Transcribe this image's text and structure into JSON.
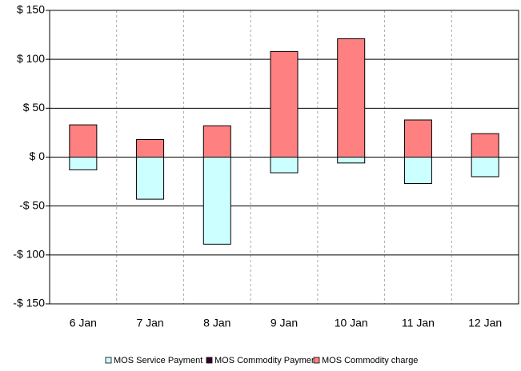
{
  "chart_data": {
    "type": "bar",
    "stacked": true,
    "categories": [
      "6 Jan",
      "7 Jan",
      "8 Jan",
      "9 Jan",
      "10 Jan",
      "11 Jan",
      "12 Jan"
    ],
    "series": [
      {
        "name": "MOS Service Payment",
        "color": "#ccffff",
        "values": [
          -13,
          -43,
          -89,
          -16,
          -6,
          -27,
          -20
        ]
      },
      {
        "name": "MOS Commodity Payment",
        "color": "#330033",
        "values": [
          0,
          0,
          0,
          0,
          0,
          0,
          0
        ]
      },
      {
        "name": "MOS Commodity charge",
        "color": "#ff8080",
        "values": [
          33,
          18,
          32,
          108,
          121,
          38,
          24
        ]
      }
    ],
    "ylim": [
      -150,
      150
    ],
    "yticks": [
      {
        "value": -150,
        "label": "-$ 150"
      },
      {
        "value": -100,
        "label": "-$ 100"
      },
      {
        "value": -50,
        "label": "-$ 50"
      },
      {
        "value": 0,
        "label": "$ 0"
      },
      {
        "value": 50,
        "label": "$ 50"
      },
      {
        "value": 100,
        "label": "$ 100"
      },
      {
        "value": 150,
        "label": "$ 150"
      }
    ],
    "grid": true,
    "legend": "bottom"
  }
}
